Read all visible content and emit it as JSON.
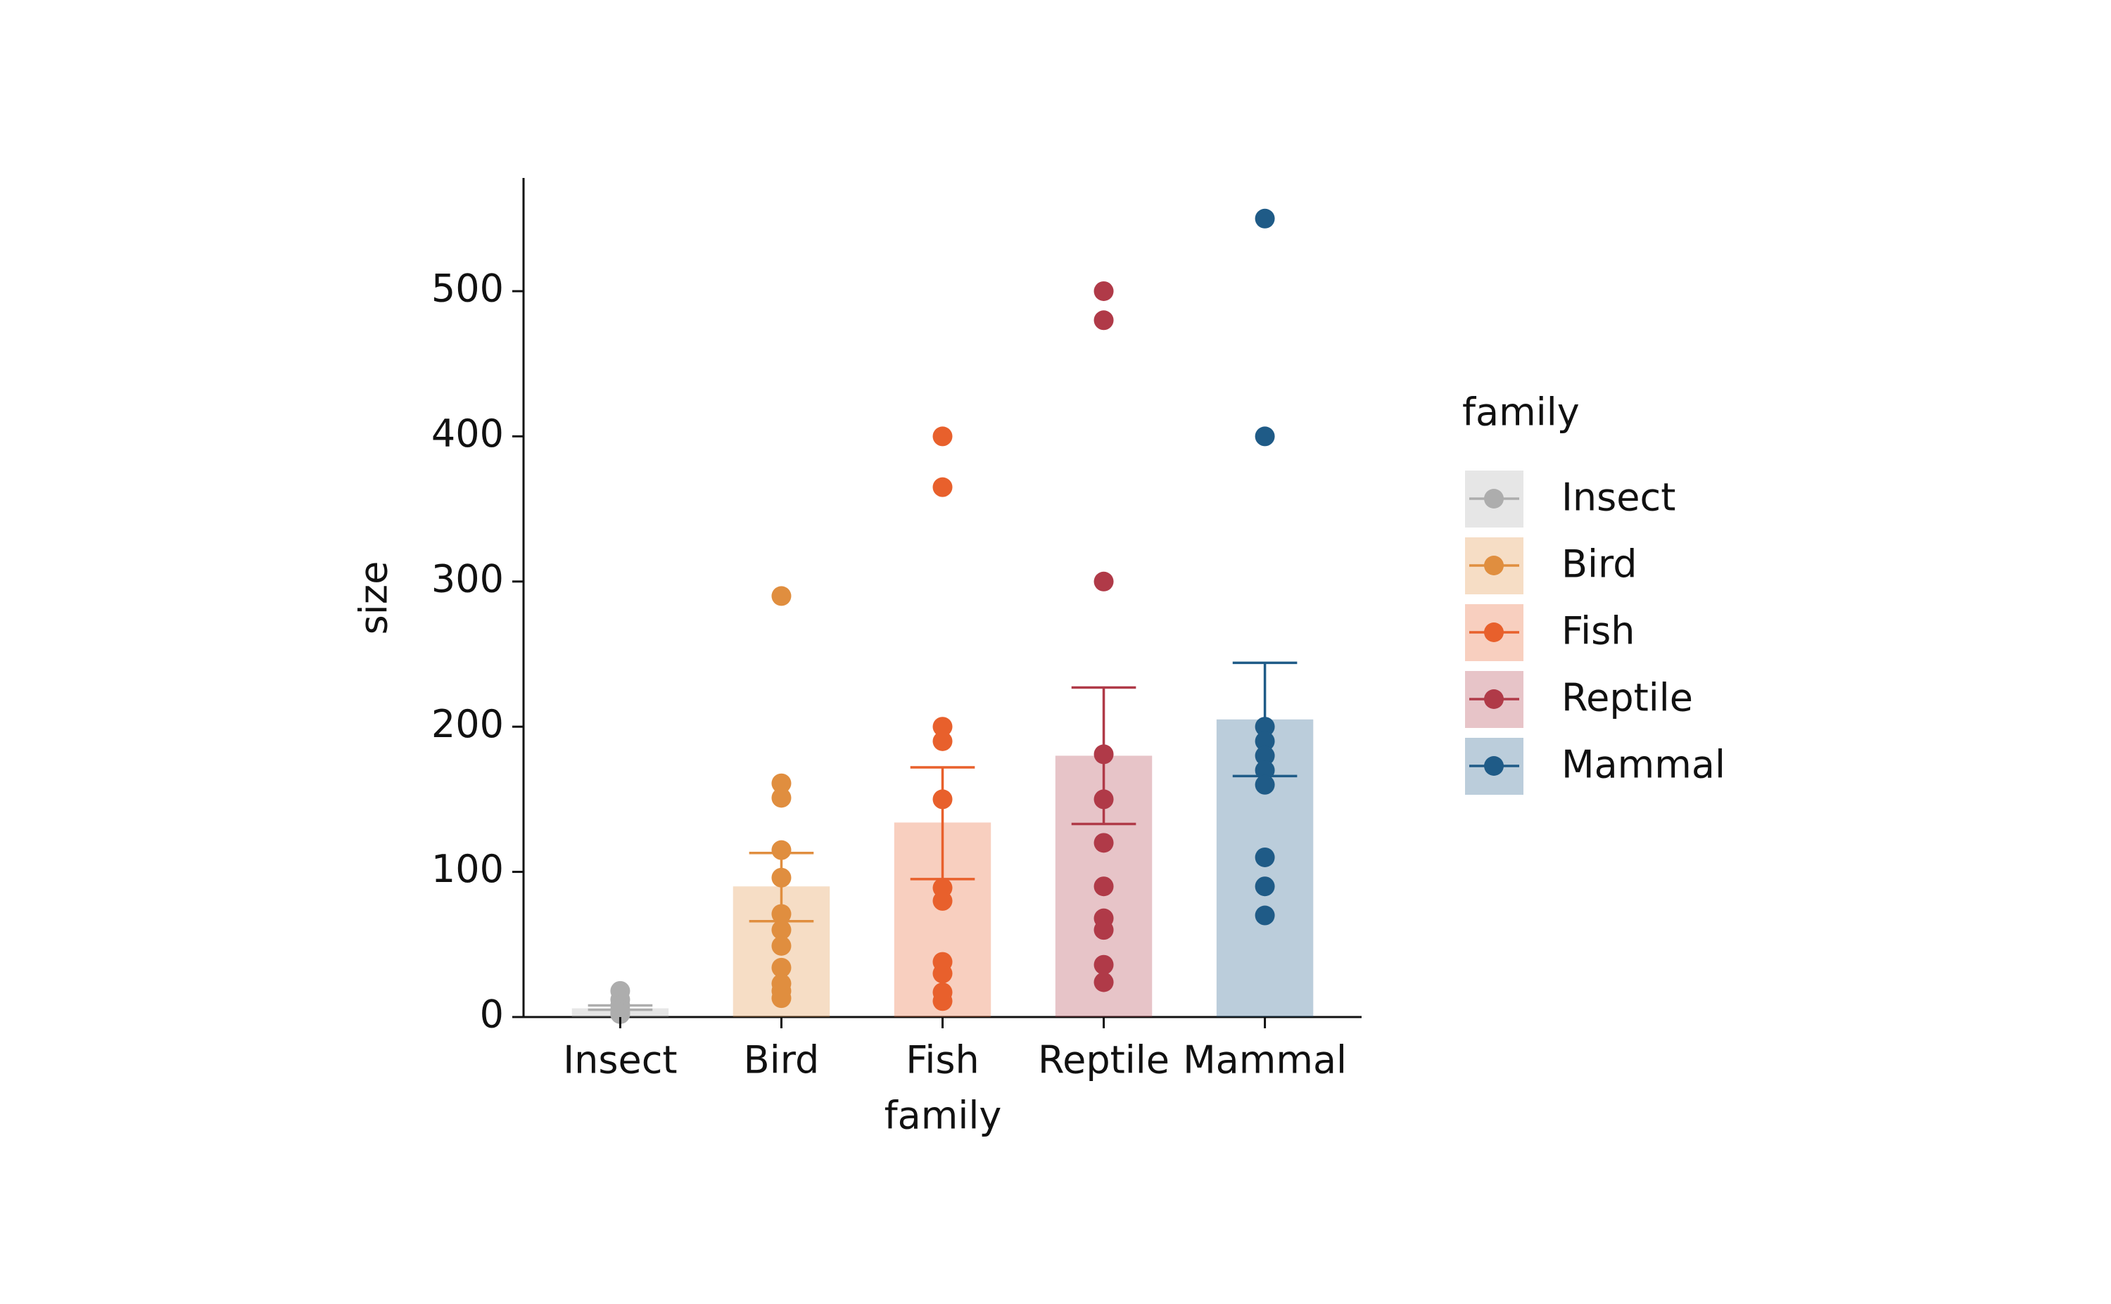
{
  "chart_data": {
    "type": "bar",
    "x_label": "family",
    "y_label": "size",
    "legend_title": "family",
    "categories": [
      "Insect",
      "Bird",
      "Fish",
      "Reptile",
      "Mammal"
    ],
    "colors": [
      "#adadad",
      "#e08e3f",
      "#e8602c",
      "#b03a48",
      "#1f5b87"
    ],
    "values": [
      6,
      90,
      134,
      180,
      205
    ],
    "ci": [
      [
        5,
        8
      ],
      [
        66,
        113
      ],
      [
        95,
        172
      ],
      [
        133,
        227
      ],
      [
        166,
        244
      ]
    ],
    "points": [
      [
        18,
        12,
        8,
        5,
        3,
        2
      ],
      [
        290,
        161,
        151,
        115,
        96,
        71,
        60,
        49,
        34,
        23,
        18,
        13
      ],
      [
        400,
        365,
        200,
        190,
        150,
        89,
        80,
        38,
        30,
        17,
        11
      ],
      [
        500,
        480,
        300,
        181,
        150,
        120,
        90,
        68,
        60,
        36,
        24
      ],
      [
        550,
        400,
        200,
        190,
        180,
        170,
        160,
        110,
        90,
        70
      ]
    ],
    "ylim": [
      0,
      578
    ],
    "yticks": [
      0,
      100,
      200,
      300,
      400,
      500
    ]
  }
}
